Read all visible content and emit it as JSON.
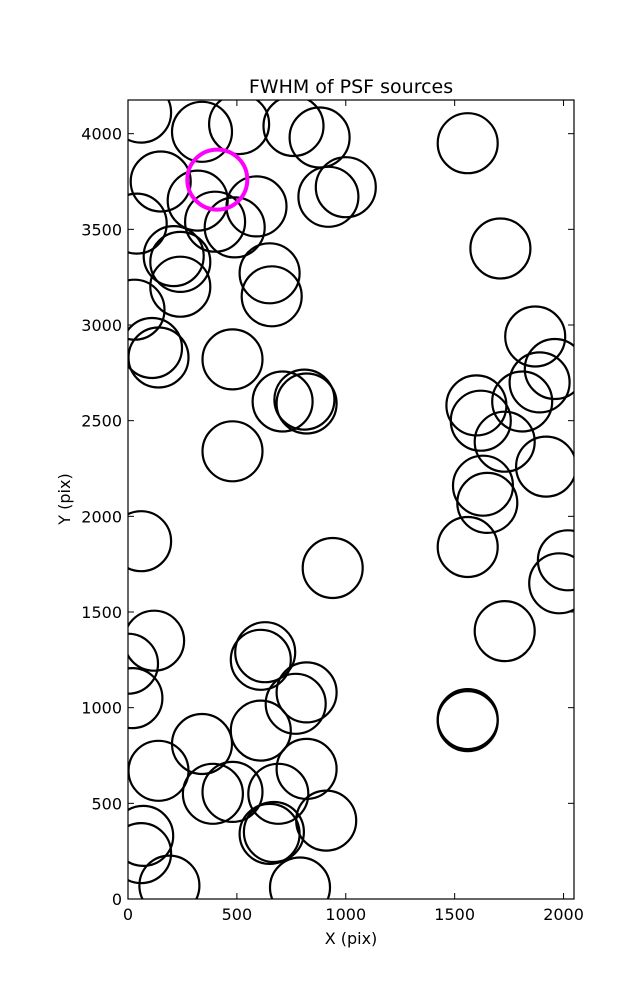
{
  "chart_data": {
    "type": "scatter",
    "title": "FWHM of PSF sources",
    "xlabel": "X (pix)",
    "ylabel": "Y (pix)",
    "xlim": [
      0,
      2048
    ],
    "ylim": [
      0,
      4176
    ],
    "xticks": [
      0,
      500,
      1000,
      1500,
      2000
    ],
    "yticks": [
      0,
      500,
      1000,
      1500,
      2000,
      2500,
      3000,
      3500,
      4000
    ],
    "grid": false,
    "marker": "open circle",
    "marker_color": "#000000",
    "highlight_color": "#ff00ff",
    "series": [
      {
        "points": [
          [
            60,
            4110
          ],
          [
            340,
            4010
          ],
          [
            510,
            4050
          ],
          [
            760,
            4040
          ],
          [
            880,
            3980
          ],
          [
            150,
            3750
          ],
          [
            320,
            3650
          ],
          [
            400,
            3540
          ],
          [
            490,
            3510
          ],
          [
            590,
            3620
          ],
          [
            920,
            3670
          ],
          [
            1000,
            3720
          ],
          [
            1560,
            3950
          ],
          [
            1710,
            3400
          ],
          [
            40,
            3530
          ],
          [
            210,
            3360
          ],
          [
            240,
            3330
          ],
          [
            240,
            3200
          ],
          [
            30,
            3080
          ],
          [
            650,
            3270
          ],
          [
            660,
            3150
          ],
          [
            110,
            2880
          ],
          [
            140,
            2830
          ],
          [
            480,
            2820
          ],
          [
            710,
            2600
          ],
          [
            810,
            2610
          ],
          [
            820,
            2590
          ],
          [
            480,
            2340
          ],
          [
            1600,
            2580
          ],
          [
            1620,
            2500
          ],
          [
            1730,
            2390
          ],
          [
            1810,
            2600
          ],
          [
            1870,
            2940
          ],
          [
            1890,
            2700
          ],
          [
            1960,
            2770
          ],
          [
            1920,
            2260
          ],
          [
            1630,
            2160
          ],
          [
            1650,
            2070
          ],
          [
            1560,
            1840
          ],
          [
            1730,
            1400
          ],
          [
            1980,
            1650
          ],
          [
            2020,
            1770
          ],
          [
            60,
            1870
          ],
          [
            940,
            1730
          ],
          [
            0,
            1230
          ],
          [
            120,
            1350
          ],
          [
            20,
            1050
          ],
          [
            630,
            1290
          ],
          [
            610,
            1250
          ],
          [
            770,
            1020
          ],
          [
            820,
            1080
          ],
          [
            610,
            880
          ],
          [
            340,
            810
          ],
          [
            140,
            670
          ],
          [
            390,
            550
          ],
          [
            480,
            560
          ],
          [
            690,
            550
          ],
          [
            820,
            680
          ],
          [
            910,
            410
          ],
          [
            70,
            330
          ],
          [
            60,
            240
          ],
          [
            190,
            70
          ],
          [
            670,
            350
          ],
          [
            650,
            340
          ],
          [
            790,
            60
          ],
          [
            1560,
            940
          ],
          [
            1560,
            930
          ]
        ]
      }
    ],
    "highlight_point": [
      410,
      3760
    ]
  }
}
